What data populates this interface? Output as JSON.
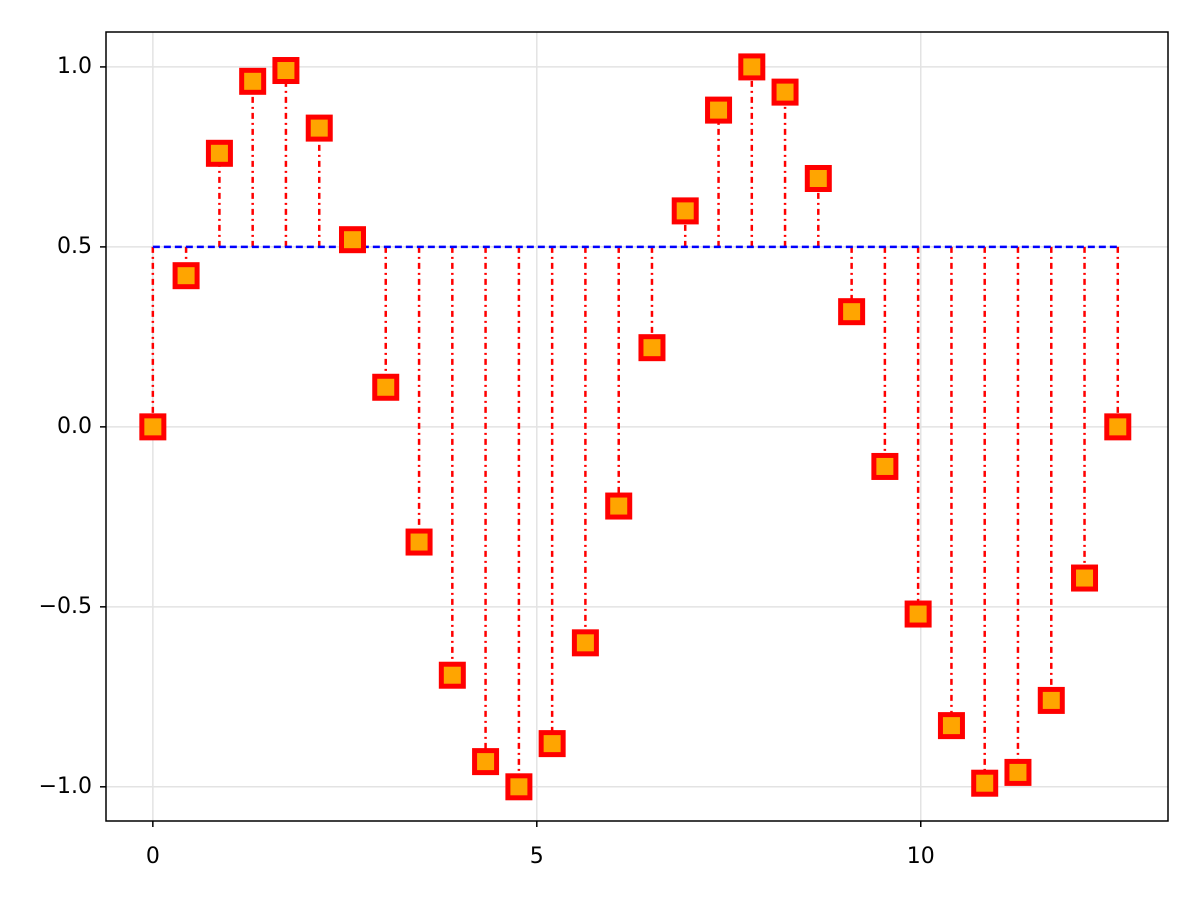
{
  "chart_data": {
    "type": "stem",
    "x": [
      0,
      0.433,
      0.867,
      1.3,
      1.733,
      2.167,
      2.6,
      3.033,
      3.467,
      3.9,
      4.333,
      4.767,
      5.2,
      5.633,
      6.067,
      6.5,
      6.933,
      7.367,
      7.8,
      8.233,
      8.666,
      9.1,
      9.533,
      9.966,
      10.4,
      10.833,
      11.266,
      11.7,
      12.133,
      12.566
    ],
    "values": [
      0,
      0.42,
      0.76,
      0.96,
      0.99,
      0.83,
      0.52,
      0.11,
      -0.32,
      -0.69,
      -0.93,
      -1.0,
      -0.88,
      -0.6,
      -0.22,
      0.22,
      0.6,
      0.88,
      1.0,
      0.93,
      0.69,
      0.32,
      -0.11,
      -0.52,
      -0.83,
      -0.99,
      -0.96,
      -0.76,
      -0.42,
      0
    ],
    "offset": 0.5,
    "stem_color": "#ff0000",
    "marker_stroke": "#ff0000",
    "marker_fill": "#ffa500",
    "baseline_color": "#0000ff",
    "xlim": [
      -0.61,
      13.22
    ],
    "ylim": [
      -1.095,
      1.097
    ],
    "xticks": [
      0,
      5,
      10
    ],
    "yticks": [
      {
        "value": -1,
        "label": "−1.0"
      },
      {
        "value": -0.5,
        "label": "−0.5"
      },
      {
        "value": 0,
        "label": "0.0"
      },
      0.5,
      {
        "value": 1,
        "label": "1.0"
      }
    ],
    "grid": true
  }
}
